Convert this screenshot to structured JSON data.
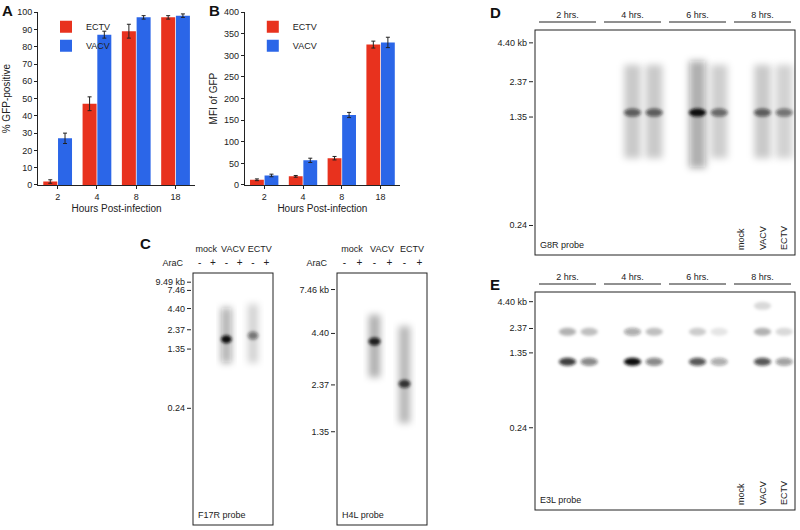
{
  "chart_data": [
    {
      "type": "bar",
      "title": "A",
      "categories": [
        "2",
        "4",
        "8",
        "18"
      ],
      "x_label": "Hours Post-infection",
      "y_label": "% GFP-positive",
      "ylim": [
        0,
        100
      ],
      "yticks": [
        0,
        10,
        20,
        30,
        40,
        50,
        60,
        70,
        80,
        90,
        100
      ],
      "legend": "top left",
      "series": [
        {
          "name": "ECTV",
          "color": "#e8321e",
          "values": [
            2,
            47,
            89,
            97
          ],
          "error": [
            1,
            4,
            4,
            1
          ]
        },
        {
          "name": "VACV",
          "color": "#2b66e8",
          "values": [
            27,
            87,
            97,
            98
          ],
          "error": [
            3,
            2,
            1,
            1
          ]
        }
      ]
    },
    {
      "type": "bar",
      "title": "B",
      "categories": [
        "2",
        "4",
        "8",
        "18"
      ],
      "x_label": "Hours Post-infection",
      "y_label": "MFI of GFP",
      "ylim": [
        0,
        400
      ],
      "yticks": [
        0,
        50,
        100,
        150,
        200,
        250,
        300,
        350,
        400
      ],
      "legend": "top left",
      "series": [
        {
          "name": "ECTV",
          "color": "#e8321e",
          "values": [
            12,
            20,
            62,
            325
          ],
          "error": [
            2,
            2,
            4,
            8
          ]
        },
        {
          "name": "VACV",
          "color": "#2b66e8",
          "values": [
            22,
            57,
            162,
            330
          ],
          "error": [
            3,
            5,
            6,
            12
          ]
        }
      ]
    }
  ],
  "blots": [
    {
      "panel": "C",
      "probe": "F17R probe",
      "row_label": "AraC",
      "log": "y",
      "ylim": [
        0.008,
        12.4
      ],
      "yticks": [
        {
          "value": 9.49,
          "label": "9.49 kb"
        },
        7.46,
        {
          "value": 4.4,
          "label": "4.40"
        },
        2.37,
        1.35,
        0.24
      ],
      "groups": [
        {
          "name": "mock",
          "lanes": [
            {
              "label": "-",
              "bands": []
            },
            {
              "label": "+",
              "bands": []
            }
          ]
        },
        {
          "name": "VACV",
          "lanes": [
            {
              "label": "-",
              "bands": [
                {
                  "kb": 1.8,
                  "intensity": 1,
                  "smear": [
                    0.9,
                    4.5
                  ]
                }
              ]
            },
            {
              "label": "+",
              "bands": []
            }
          ]
        },
        {
          "name": "ECTV",
          "lanes": [
            {
              "label": "-",
              "bands": [
                {
                  "kb": 2.0,
                  "intensity": 0.5,
                  "smear": [
                    0.9,
                    5
                  ]
                }
              ]
            },
            {
              "label": "+",
              "bands": []
            }
          ]
        }
      ]
    },
    {
      "probe": "H4L probe",
      "row_label": "AraC",
      "log": "y",
      "ylim": [
        0.44,
        9.1
      ],
      "yticks": [
        {
          "value": 7.46,
          "label": "7.46 kb"
        },
        {
          "value": 4.4,
          "label": "4.40"
        },
        2.37,
        1.35
      ],
      "groups": [
        {
          "name": "mock",
          "lanes": [
            {
              "label": "-",
              "bands": []
            },
            {
              "label": "+",
              "bands": []
            }
          ]
        },
        {
          "name": "VACV",
          "lanes": [
            {
              "label": "-",
              "bands": [
                {
                  "kb": 4.0,
                  "intensity": 0.9,
                  "smear": [
                    2.6,
                    5.5
                  ]
                }
              ]
            },
            {
              "label": "+",
              "bands": []
            }
          ]
        },
        {
          "name": "ECTV",
          "lanes": [
            {
              "label": "-",
              "bands": [
                {
                  "kb": 2.4,
                  "intensity": 0.8,
                  "smear": [
                    1.5,
                    4.8
                  ]
                }
              ]
            },
            {
              "label": "+",
              "bands": []
            }
          ]
        }
      ]
    },
    {
      "panel": "D",
      "probe": "G8R probe",
      "log": "y",
      "ylim": [
        0.15,
        5.4
      ],
      "yticks": [
        {
          "value": 4.4,
          "label": "4.40 kb"
        },
        2.37,
        1.35,
        0.24
      ],
      "groups": [
        {
          "name": "2 hrs.",
          "lanes": [
            {
              "bands": []
            },
            {
              "bands": []
            },
            {
              "bands": []
            }
          ]
        },
        {
          "name": "4 hrs.",
          "lanes": [
            {
              "bands": []
            },
            {
              "bands": [
                {
                  "kb": 1.45,
                  "intensity": 0.6,
                  "smear": [
                    0.7,
                    3.1
                  ]
                }
              ]
            },
            {
              "bands": [
                {
                  "kb": 1.45,
                  "intensity": 0.6,
                  "smear": [
                    0.7,
                    3.1
                  ]
                }
              ]
            }
          ]
        },
        {
          "name": "6 hrs.",
          "lanes": [
            {
              "bands": []
            },
            {
              "bands": [
                {
                  "kb": 1.45,
                  "intensity": 1,
                  "smear": [
                    0.6,
                    3.3
                  ]
                }
              ]
            },
            {
              "bands": [
                {
                  "kb": 1.45,
                  "intensity": 0.55,
                  "smear": [
                    0.7,
                    3.1
                  ]
                }
              ]
            }
          ]
        },
        {
          "name": "8 hrs.",
          "lanes": [
            {
              "label": "mock",
              "bands": []
            },
            {
              "label": "VACV",
              "bands": [
                {
                  "kb": 1.45,
                  "intensity": 0.6,
                  "smear": [
                    0.7,
                    3.1
                  ]
                }
              ]
            },
            {
              "label": "ECTV",
              "bands": [
                {
                  "kb": 1.45,
                  "intensity": 0.5,
                  "smear": [
                    0.7,
                    3.1
                  ]
                }
              ]
            }
          ]
        }
      ]
    },
    {
      "panel": "E",
      "probe": "E3L probe",
      "log": "y",
      "ylim": [
        0.036,
        5.5
      ],
      "yticks": [
        {
          "value": 4.4,
          "label": "4.40 kb"
        },
        2.37,
        1.35,
        0.24
      ],
      "groups": [
        {
          "name": "2 hrs.",
          "lanes": [
            {
              "bands": []
            },
            {
              "bands": [
                {
                  "kb": 1.1,
                  "intensity": 0.8
                },
                {
                  "kb": 2.2,
                  "intensity": 0.3
                }
              ]
            },
            {
              "bands": [
                {
                  "kb": 1.1,
                  "intensity": 0.5
                },
                {
                  "kb": 2.2,
                  "intensity": 0.25
                }
              ]
            }
          ]
        },
        {
          "name": "4 hrs.",
          "lanes": [
            {
              "bands": []
            },
            {
              "bands": [
                {
                  "kb": 1.1,
                  "intensity": 1
                },
                {
                  "kb": 2.2,
                  "intensity": 0.35
                }
              ]
            },
            {
              "bands": [
                {
                  "kb": 1.1,
                  "intensity": 0.5
                },
                {
                  "kb": 2.2,
                  "intensity": 0.25
                }
              ]
            }
          ]
        },
        {
          "name": "6 hrs.",
          "lanes": [
            {
              "bands": []
            },
            {
              "bands": [
                {
                  "kb": 1.1,
                  "intensity": 0.7
                },
                {
                  "kb": 2.2,
                  "intensity": 0.2
                }
              ]
            },
            {
              "bands": [
                {
                  "kb": 1.1,
                  "intensity": 0.35
                },
                {
                  "kb": 2.2,
                  "intensity": 0.1
                }
              ]
            }
          ]
        },
        {
          "name": "8 hrs.",
          "lanes": [
            {
              "label": "mock",
              "bands": []
            },
            {
              "label": "VACV",
              "bands": [
                {
                  "kb": 1.1,
                  "intensity": 0.7
                },
                {
                  "kb": 2.2,
                  "intensity": 0.3
                },
                {
                  "kb": 4.0,
                  "intensity": 0.15
                }
              ]
            },
            {
              "label": "ECTV",
              "bands": [
                {
                  "kb": 1.1,
                  "intensity": 0.4
                },
                {
                  "kb": 2.2,
                  "intensity": 0.15
                }
              ]
            }
          ]
        }
      ]
    }
  ]
}
